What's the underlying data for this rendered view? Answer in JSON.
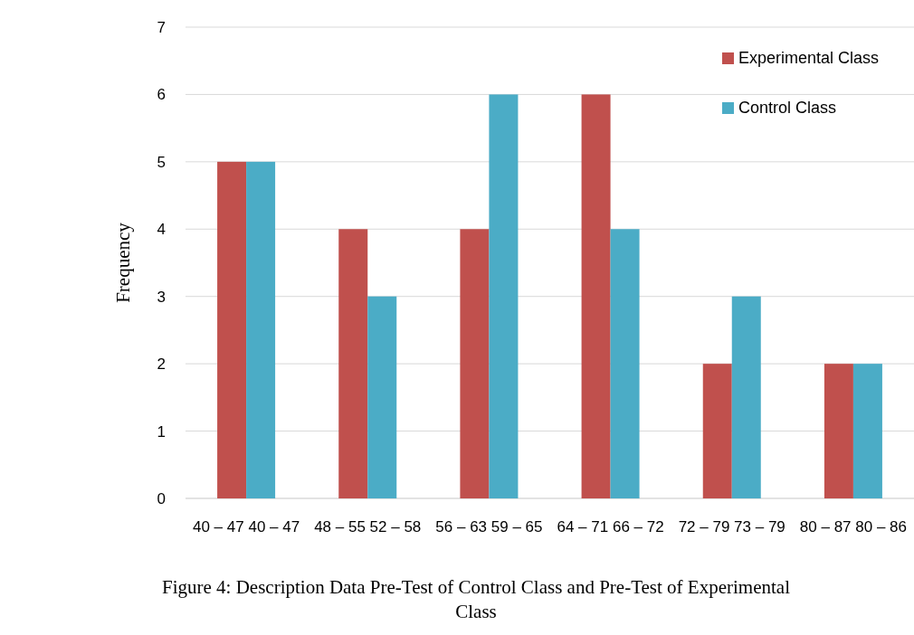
{
  "chart_data": {
    "type": "bar",
    "title": "Figure 4: Description Data Pre-Test of Control Class and Pre-Test of Experimental Class",
    "ylabel": "Frequency",
    "categories": [
      "40 – 47 40 – 47",
      "48 – 55 52 – 58",
      "56 – 63 59 – 65",
      "64 – 71 66 – 72",
      "72 – 79 73 – 79",
      "80 – 87 80 – 86"
    ],
    "series": [
      {
        "name": "Experimental Class",
        "color": "#c0504d",
        "values": [
          5,
          4,
          4,
          6,
          2,
          2
        ]
      },
      {
        "name": "Control Class",
        "color": "#4bacc6",
        "values": [
          5,
          3,
          6,
          4,
          3,
          2
        ]
      }
    ],
    "ylim": [
      0,
      7
    ],
    "yticks": [
      0,
      1,
      2,
      3,
      4,
      5,
      6,
      7
    ],
    "grid": "y",
    "legend": "top right"
  }
}
